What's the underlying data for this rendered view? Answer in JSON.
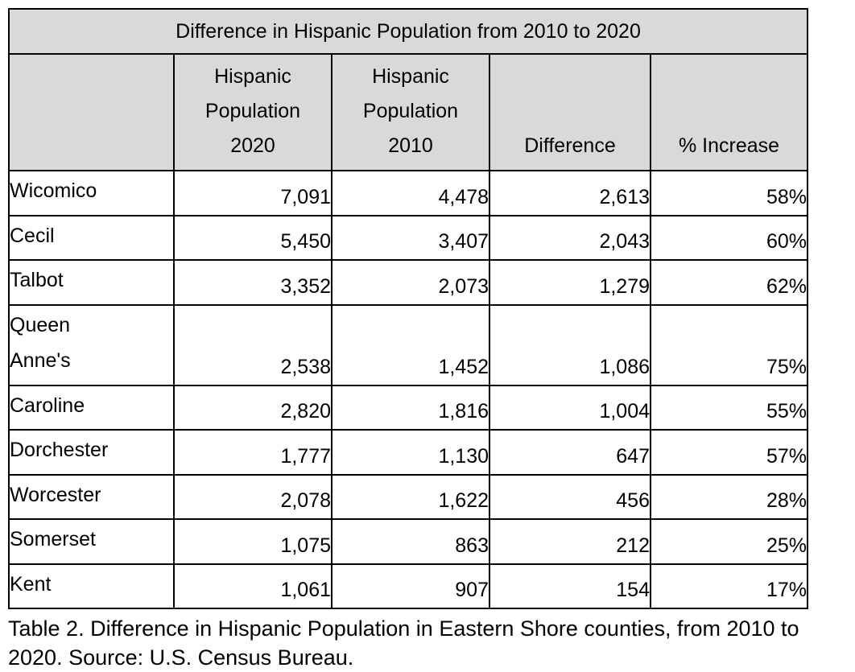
{
  "chart_data": {
    "type": "table",
    "title": "Difference in Hispanic Population from 2010 to 2020",
    "columns": [
      "",
      "Hispanic Population 2020",
      "Hispanic Population 2010",
      "Difference",
      "% Increase"
    ],
    "rows": [
      [
        "Wicomico",
        "7,091",
        "4,478",
        "2,613",
        "58%"
      ],
      [
        "Cecil",
        "5,450",
        "3,407",
        "2,043",
        "60%"
      ],
      [
        "Talbot",
        "3,352",
        "2,073",
        "1,279",
        "62%"
      ],
      [
        "Queen Anne's",
        "2,538",
        "1,452",
        "1,086",
        "75%"
      ],
      [
        "Caroline",
        "2,820",
        "1,816",
        "1,004",
        "55%"
      ],
      [
        "Dorchester",
        "1,777",
        "1,130",
        "647",
        "57%"
      ],
      [
        "Worcester",
        "2,078",
        "1,622",
        "456",
        "28%"
      ],
      [
        "Somerset",
        "1,075",
        "863",
        "212",
        "25%"
      ],
      [
        "Kent",
        "1,061",
        "907",
        "154",
        "17%"
      ]
    ],
    "caption": "Table 2. Difference in Hispanic Population in Eastern Shore counties, from 2010 to 2020. Source: U.S. Census Bureau.",
    "layout": {
      "header_background": "#d9d9d9",
      "border_color": "#000000",
      "grid": "on"
    }
  }
}
